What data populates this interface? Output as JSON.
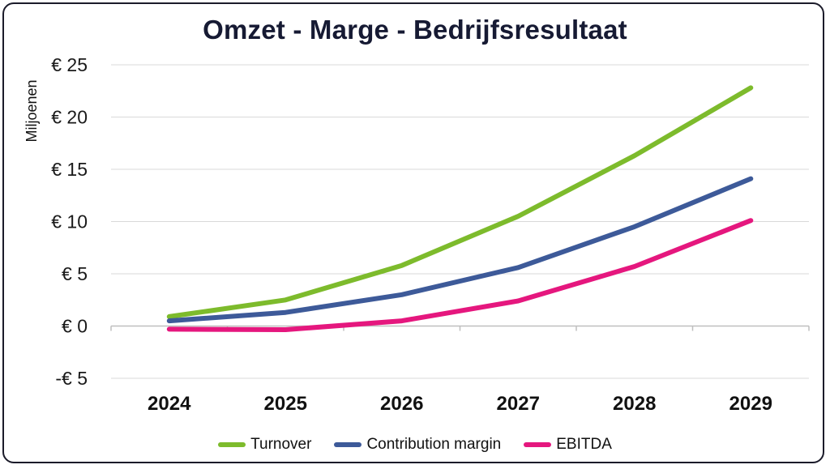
{
  "chart_data": {
    "type": "line",
    "title": "Omzet - Marge - Bedrijfsresultaat",
    "ylabel": "Miljoenen",
    "xlabel": "",
    "categories": [
      "2024",
      "2025",
      "2026",
      "2027",
      "2028",
      "2029"
    ],
    "ylim": [
      -5,
      25
    ],
    "yticks": [
      -5,
      0,
      5,
      10,
      15,
      20,
      25
    ],
    "ytick_labels": [
      "-€ 5",
      "€ 0",
      "€ 5",
      "€ 10",
      "€ 15",
      "€ 20",
      "€ 25"
    ],
    "grid": true,
    "legend_position": "bottom",
    "series": [
      {
        "name": "Turnover",
        "color": "#7dbb2c",
        "values": [
          0.9,
          2.5,
          5.8,
          10.5,
          16.3,
          22.8
        ]
      },
      {
        "name": "Contribution margin",
        "color": "#3d5a99",
        "values": [
          0.5,
          1.3,
          3.0,
          5.6,
          9.5,
          14.1
        ]
      },
      {
        "name": "EBITDA",
        "color": "#e5177e",
        "values": [
          -0.3,
          -0.35,
          0.5,
          2.4,
          5.7,
          10.1
        ]
      }
    ]
  }
}
